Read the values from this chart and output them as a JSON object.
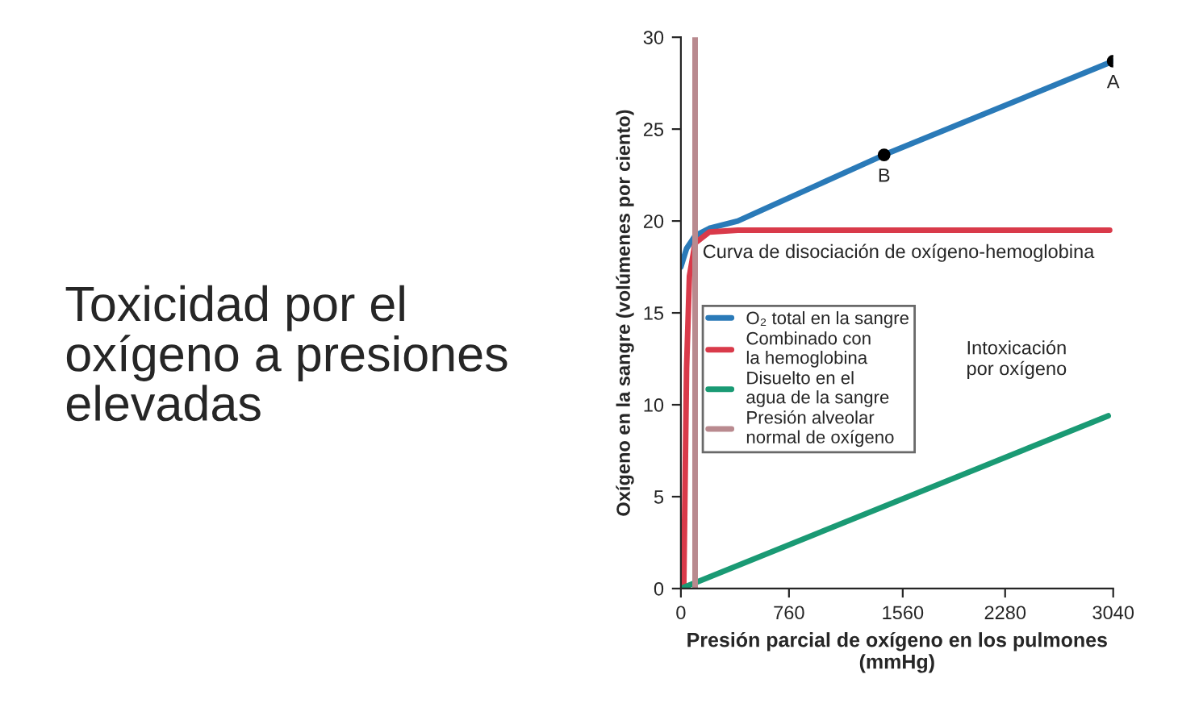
{
  "chart_data": {
    "type": "line",
    "title": "Toxicidad por el\noxígeno a presiones\nelevadas",
    "xlabel": "Presión parcial de oxígeno en los pulmones\n(mmHg)",
    "ylabel": "Oxígeno en la sangre (volúmenes por ciento)",
    "xlim": [
      0,
      3040
    ],
    "ylim": [
      0,
      30
    ],
    "xticks": [
      0,
      760,
      1560,
      2280,
      3040
    ],
    "yticks": [
      0,
      5,
      10,
      15,
      20,
      25,
      30
    ],
    "grid": false,
    "legend": "center left",
    "series": [
      {
        "name": "O₂ total en la sangre",
        "color": "#2a7ab8",
        "x": [
          0,
          40,
          100,
          200,
          400,
          1429,
          3040
        ],
        "values": [
          17.5,
          18.5,
          19.2,
          19.6,
          20.0,
          23.6,
          28.7
        ]
      },
      {
        "name": "Combinado con\nla hemoglobina",
        "color": "#d93a4a",
        "x": [
          20,
          40,
          60,
          100,
          200,
          400,
          3015
        ],
        "values": [
          0,
          12,
          17,
          18.8,
          19.4,
          19.5,
          19.5
        ]
      },
      {
        "name": "Disuelto en el\nagua de la sangre",
        "color": "#1a9a74",
        "x": [
          0,
          3005
        ],
        "values": [
          0,
          9.4
        ]
      },
      {
        "name": "Presión alveolar\nnormal de oxígeno",
        "color": "#b98a8f",
        "x": [
          100,
          100
        ],
        "values": [
          0,
          30
        ]
      },
      {
        "type": "scatter",
        "color": "#000000",
        "x": [
          1429,
          3040
        ],
        "values": [
          23.6,
          28.7
        ]
      }
    ],
    "annotations": [
      {
        "text": "A",
        "x": 3040,
        "y": 28.7
      },
      {
        "text": "B",
        "x": 1429,
        "y": 23.6
      },
      "Curva de disociación de oxígeno-hemoglobina",
      "Intoxicación\npor oxígeno"
    ]
  }
}
